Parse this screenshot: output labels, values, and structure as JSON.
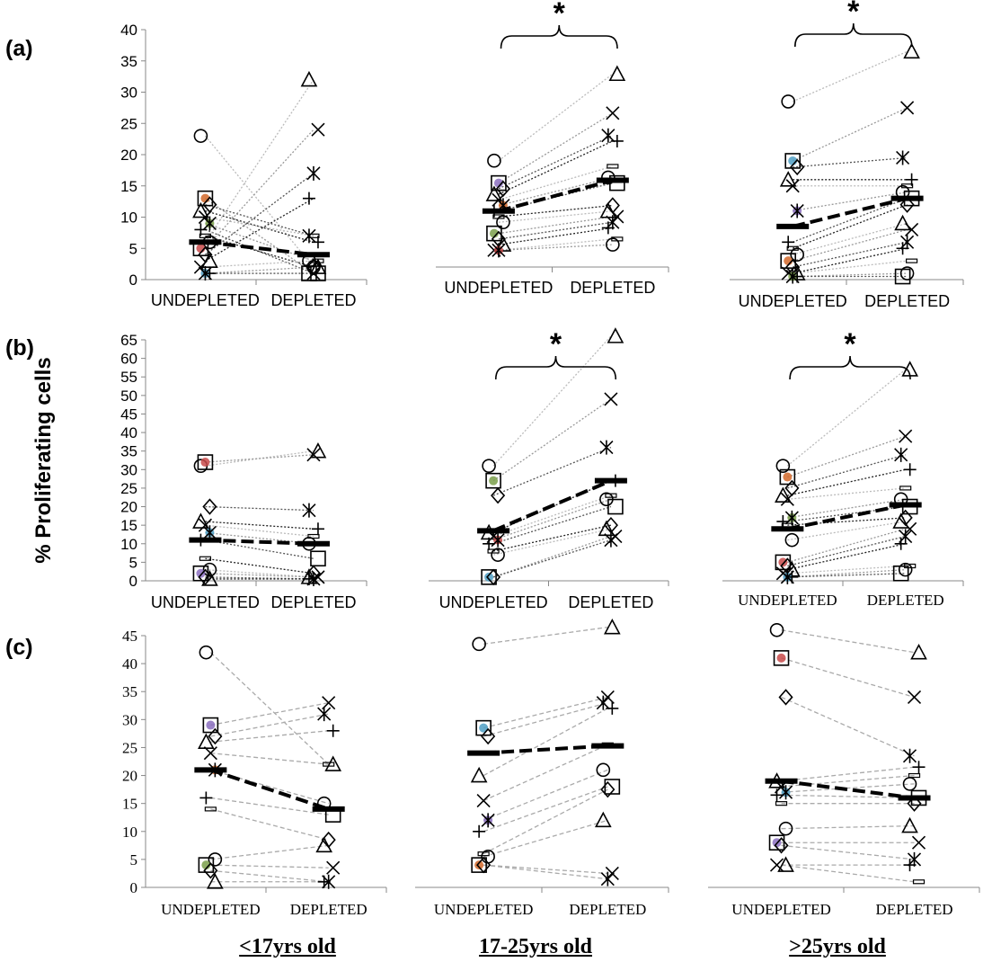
{
  "row_labels": [
    "(a)",
    "(b)",
    "(c)"
  ],
  "y_axis_label": "% Proliferating cells",
  "group_labels": [
    "<17yrs old",
    "17-25yrs old",
    ">25yrs old"
  ],
  "significance_marker": "*",
  "chart_data": [
    {
      "id": "a1",
      "type": "scatter",
      "row": "(a)",
      "group": "<17yrs old",
      "categories": [
        "UNDEPLETED",
        "DEPLETED"
      ],
      "ylim": [
        0,
        40
      ],
      "yticks": [
        0,
        5,
        10,
        15,
        20,
        25,
        30,
        35,
        40
      ],
      "show_yaxis": true,
      "serif_ticks": false,
      "significant": false,
      "medians": [
        6,
        4
      ],
      "pairs": [
        [
          23,
          2
        ],
        [
          13,
          1
        ],
        [
          12,
          7
        ],
        [
          11,
          6
        ],
        [
          10,
          7
        ],
        [
          9,
          3
        ],
        [
          8,
          1
        ],
        [
          7,
          2
        ],
        [
          6,
          32
        ],
        [
          5,
          24
        ],
        [
          4,
          17
        ],
        [
          3,
          13
        ],
        [
          2,
          3
        ],
        [
          1,
          2
        ],
        [
          1,
          1
        ]
      ]
    },
    {
      "id": "a2",
      "type": "scatter",
      "row": "(a)",
      "group": "17-25yrs old",
      "categories": [
        "UNDEPLETED",
        "DEPLETED"
      ],
      "ylim": [
        0,
        40
      ],
      "yticks": [
        0,
        5,
        10,
        15,
        20,
        25,
        30,
        35,
        40
      ],
      "show_yaxis": false,
      "serif_ticks": false,
      "significant": true,
      "medians": [
        10,
        15.5
      ],
      "pairs": [
        [
          19,
          34.5
        ],
        [
          15,
          27.5
        ],
        [
          14,
          23.5
        ],
        [
          13,
          22.5
        ],
        [
          12,
          18
        ],
        [
          11,
          16
        ],
        [
          10,
          15
        ],
        [
          9,
          11
        ],
        [
          8,
          10
        ],
        [
          6,
          9
        ],
        [
          5,
          8
        ],
        [
          4,
          7
        ],
        [
          3,
          5
        ],
        [
          3,
          4
        ]
      ]
    },
    {
      "id": "a3",
      "type": "scatter",
      "row": "(a)",
      "group": ">25yrs old",
      "categories": [
        "UNDEPLETED",
        "DEPLETED"
      ],
      "ylim": [
        0,
        40
      ],
      "yticks": [
        0,
        5,
        10,
        15,
        20,
        25,
        30,
        35,
        40
      ],
      "show_yaxis": false,
      "serif_ticks": false,
      "significant": true,
      "medians": [
        8.5,
        13
      ],
      "pairs": [
        [
          28.5,
          36.5
        ],
        [
          19,
          27.5
        ],
        [
          18,
          19.5
        ],
        [
          16,
          16
        ],
        [
          15,
          15
        ],
        [
          11,
          14
        ],
        [
          6,
          13
        ],
        [
          5,
          12
        ],
        [
          4,
          9
        ],
        [
          3,
          8
        ],
        [
          2,
          6
        ],
        [
          1,
          5
        ],
        [
          1,
          3
        ],
        [
          0.5,
          1
        ],
        [
          0.5,
          0.5
        ]
      ]
    },
    {
      "id": "b1",
      "type": "scatter",
      "row": "(b)",
      "group": "<17yrs old",
      "categories": [
        "UNDEPLETED",
        "DEPLETED"
      ],
      "ylim": [
        0,
        65
      ],
      "yticks": [
        0,
        5,
        10,
        15,
        20,
        25,
        30,
        35,
        40,
        45,
        50,
        55,
        60,
        65
      ],
      "show_yaxis": true,
      "serif_ticks": false,
      "significant": false,
      "medians": [
        11,
        10
      ],
      "pairs": [
        [
          31,
          35
        ],
        [
          32,
          34
        ],
        [
          20,
          19
        ],
        [
          16,
          14
        ],
        [
          15,
          12
        ],
        [
          13,
          10
        ],
        [
          11,
          6
        ],
        [
          6,
          2
        ],
        [
          3,
          1
        ],
        [
          2,
          1
        ],
        [
          1,
          0.5
        ],
        [
          0.5,
          0.5
        ]
      ]
    },
    {
      "id": "b2",
      "type": "scatter",
      "row": "(b)",
      "group": "17-25yrs old",
      "categories": [
        "UNDEPLETED",
        "DEPLETED"
      ],
      "ylim": [
        0,
        65
      ],
      "yticks": [
        0,
        5,
        10,
        15,
        20,
        25,
        30,
        35,
        40,
        45,
        50,
        55,
        60,
        65
      ],
      "show_yaxis": false,
      "serif_ticks": false,
      "significant": true,
      "medians": [
        13.5,
        27
      ],
      "pairs": [
        [
          31,
          66
        ],
        [
          27,
          49
        ],
        [
          23,
          36
        ],
        [
          13,
          27
        ],
        [
          12,
          23
        ],
        [
          11,
          22
        ],
        [
          10,
          20
        ],
        [
          8,
          15
        ],
        [
          7,
          14
        ],
        [
          1,
          12
        ],
        [
          1,
          11
        ]
      ]
    },
    {
      "id": "b3",
      "type": "scatter",
      "row": "(b)",
      "group": ">25yrs old",
      "categories": [
        "UNDEPLETED",
        "DEPLETED"
      ],
      "ylim": [
        0,
        65
      ],
      "yticks": [
        0,
        5,
        10,
        15,
        20,
        25,
        30,
        35,
        40,
        45,
        50,
        55,
        60,
        65
      ],
      "show_yaxis": false,
      "serif_ticks": true,
      "significant": true,
      "medians": [
        14,
        20.5
      ],
      "pairs": [
        [
          31,
          57
        ],
        [
          28,
          39
        ],
        [
          25,
          34
        ],
        [
          23,
          30
        ],
        [
          22,
          25
        ],
        [
          17,
          22
        ],
        [
          16,
          20
        ],
        [
          15,
          17
        ],
        [
          11,
          16
        ],
        [
          5,
          14
        ],
        [
          4,
          12
        ],
        [
          3,
          10
        ],
        [
          2,
          4
        ],
        [
          1,
          3
        ],
        [
          1,
          2
        ]
      ]
    },
    {
      "id": "c1",
      "type": "scatter",
      "row": "(c)",
      "group": "<17yrs old",
      "categories": [
        "UNDEPLETED",
        "DEPLETED"
      ],
      "ylim": [
        0,
        45
      ],
      "yticks": [
        0,
        5,
        10,
        15,
        20,
        25,
        30,
        35,
        40,
        45
      ],
      "show_yaxis": true,
      "serif_ticks": true,
      "significant": false,
      "medians": [
        21,
        14
      ],
      "pairs": [
        [
          42,
          22
        ],
        [
          29,
          33
        ],
        [
          27,
          31
        ],
        [
          26,
          28
        ],
        [
          24,
          22
        ],
        [
          21,
          15
        ],
        [
          16,
          13
        ],
        [
          14,
          8.5
        ],
        [
          5,
          7.5
        ],
        [
          4,
          3.5
        ],
        [
          3,
          1
        ],
        [
          1,
          1
        ]
      ]
    },
    {
      "id": "c2",
      "type": "scatter",
      "row": "(c)",
      "group": "17-25yrs old",
      "categories": [
        "UNDEPLETED",
        "DEPLETED"
      ],
      "ylim": [
        0,
        45
      ],
      "yticks": [
        0,
        5,
        10,
        15,
        20,
        25,
        30,
        35,
        40,
        45
      ],
      "show_yaxis": false,
      "serif_ticks": true,
      "significant": false,
      "medians": [
        24,
        25.3
      ],
      "pairs": [
        [
          43.5,
          46.5
        ],
        [
          28.5,
          34
        ],
        [
          27,
          33
        ],
        [
          20,
          32
        ],
        [
          15.5,
          25.5
        ],
        [
          12,
          21
        ],
        [
          10,
          18
        ],
        [
          6,
          17.5
        ],
        [
          5.5,
          12
        ],
        [
          4,
          2.5
        ],
        [
          4,
          1.5
        ]
      ]
    },
    {
      "id": "c3",
      "type": "scatter",
      "row": "(c)",
      "group": ">25yrs old",
      "categories": [
        "UNDEPLETED",
        "DEPLETED"
      ],
      "ylim": [
        0,
        45
      ],
      "yticks": [
        0,
        5,
        10,
        15,
        20,
        25,
        30,
        35,
        40,
        45
      ],
      "show_yaxis": false,
      "serif_ticks": true,
      "significant": false,
      "medians": [
        19,
        16
      ],
      "pairs": [
        [
          46,
          42
        ],
        [
          41,
          34
        ],
        [
          34,
          23.5
        ],
        [
          19,
          21.5
        ],
        [
          18,
          20
        ],
        [
          17,
          18.5
        ],
        [
          16.5,
          16
        ],
        [
          15,
          15
        ],
        [
          10.5,
          11
        ],
        [
          8,
          8
        ],
        [
          7.5,
          5
        ],
        [
          4,
          4
        ],
        [
          4,
          1
        ]
      ]
    }
  ]
}
